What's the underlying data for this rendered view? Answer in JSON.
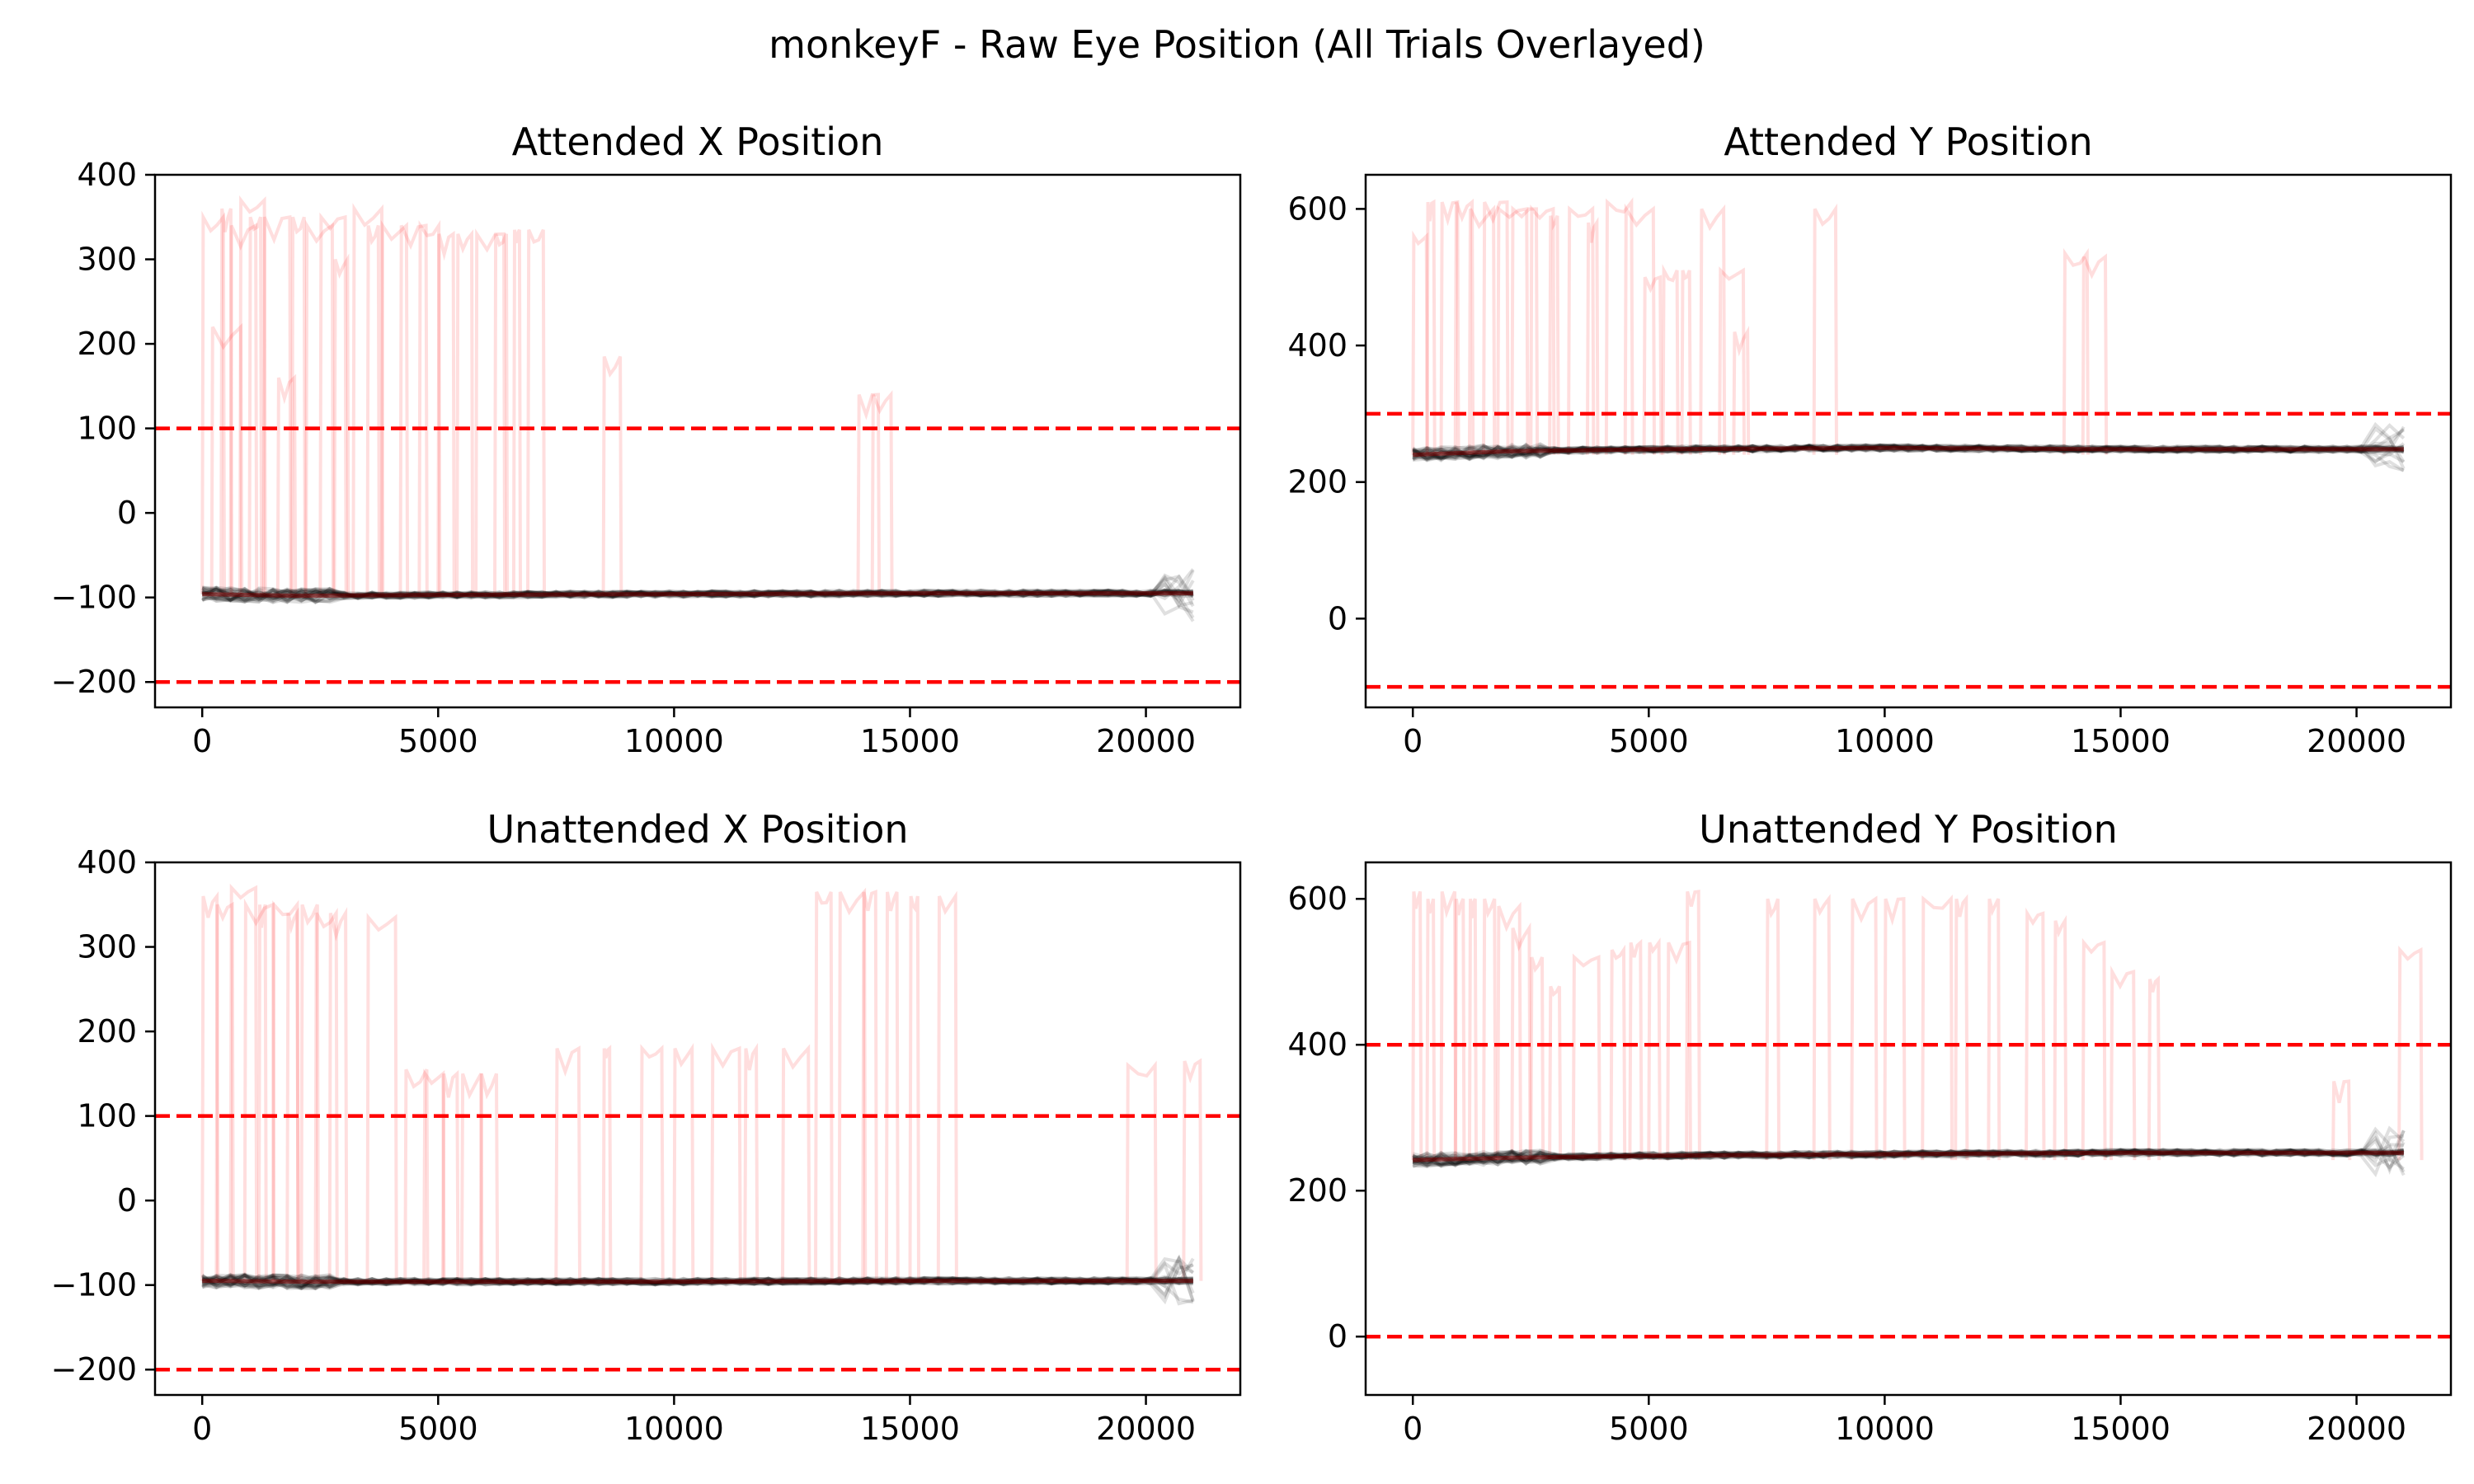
{
  "figure": {
    "suptitle": "monkeyF - Raw Eye Position (All Trials Overlayed)"
  },
  "colors": {
    "threshold": "#ff0000",
    "valid_trials": "#000000",
    "invalid_trials": "#ff0000",
    "axes": "#000000",
    "background": "#ffffff"
  },
  "chart_data": [
    {
      "type": "line",
      "title": "Attended X Position",
      "xlabel": "",
      "ylabel": "",
      "xlim": [
        -1000,
        22000
      ],
      "ylim": [
        -230,
        400
      ],
      "xticks": [
        0,
        5000,
        10000,
        15000,
        20000
      ],
      "xtick_labels": [
        "0",
        "5000",
        "10000",
        "15000",
        "20000"
      ],
      "yticks": [
        -200,
        -100,
        0,
        100,
        200,
        300,
        400
      ],
      "ytick_labels": [
        "−200",
        "−100",
        "0",
        "100",
        "200",
        "300",
        "400"
      ],
      "thresholds": [
        100,
        -200
      ],
      "grid": false,
      "valid_trace_approx": {
        "x": [
          0,
          2000,
          5000,
          10000,
          15000,
          20000,
          21000
        ],
        "y": [
          -96,
          -98,
          -97,
          -96,
          -95,
          -95,
          -95
        ]
      },
      "invalid_spike_x": [
        0,
        200,
        400,
        600,
        800,
        1000,
        1300,
        1600,
        1900,
        2200,
        2500,
        2800,
        3200,
        3500,
        3800,
        4200,
        4600,
        5000,
        5400,
        5800,
        6200,
        6600,
        6900,
        8500,
        13900,
        14200
      ],
      "invalid_spike_peak": [
        350,
        220,
        360,
        340,
        370,
        350,
        350,
        160,
        350,
        340,
        350,
        300,
        360,
        340,
        340,
        340,
        340,
        330,
        330,
        330,
        330,
        335,
        335,
        185,
        140,
        140
      ]
    },
    {
      "type": "line",
      "title": "Attended Y Position",
      "xlabel": "",
      "ylabel": "",
      "xlim": [
        -1000,
        22000
      ],
      "ylim": [
        -130,
        650
      ],
      "xticks": [
        0,
        5000,
        10000,
        15000,
        20000
      ],
      "xtick_labels": [
        "0",
        "5000",
        "10000",
        "15000",
        "20000"
      ],
      "yticks": [
        0,
        200,
        400,
        600
      ],
      "ytick_labels": [
        "0",
        "200",
        "400",
        "600"
      ],
      "thresholds": [
        300,
        -100
      ],
      "grid": false,
      "valid_trace_approx": {
        "x": [
          0,
          2000,
          5000,
          10000,
          15000,
          20000,
          21000
        ],
        "y": [
          240,
          245,
          248,
          250,
          248,
          248,
          248
        ]
      },
      "invalid_spike_x": [
        0,
        300,
        600,
        900,
        1200,
        1500,
        1800,
        2100,
        2500,
        2900,
        3300,
        3700,
        4100,
        4500,
        4900,
        5300,
        5700,
        6100,
        6500,
        6800,
        8500,
        13800,
        14200
      ],
      "invalid_spike_peak": [
        560,
        610,
        610,
        610,
        600,
        610,
        600,
        600,
        600,
        590,
        600,
        580,
        610,
        600,
        500,
        510,
        510,
        600,
        510,
        420,
        600,
        535,
        530
      ]
    },
    {
      "type": "line",
      "title": "Unattended X Position",
      "xlabel": "",
      "ylabel": "",
      "xlim": [
        -1000,
        22000
      ],
      "ylim": [
        -230,
        400
      ],
      "xticks": [
        0,
        5000,
        10000,
        15000,
        20000
      ],
      "xtick_labels": [
        "0",
        "5000",
        "10000",
        "15000",
        "20000"
      ],
      "yticks": [
        -200,
        -100,
        0,
        100,
        200,
        300,
        400
      ],
      "ytick_labels": [
        "−200",
        "−100",
        "0",
        "100",
        "200",
        "300",
        "400"
      ],
      "thresholds": [
        100,
        -200
      ],
      "grid": false,
      "valid_trace_approx": {
        "x": [
          0,
          2000,
          5000,
          10000,
          15000,
          20000,
          21000
        ],
        "y": [
          -95,
          -96,
          -96,
          -96,
          -95,
          -95,
          -95
        ]
      },
      "invalid_spike_x": [
        0,
        300,
        600,
        900,
        1200,
        1500,
        1800,
        2100,
        2400,
        2700,
        3500,
        4300,
        4700,
        5100,
        5500,
        5900,
        7500,
        8500,
        9300,
        10000,
        10800,
        11500,
        12300,
        13000,
        13500,
        14000,
        14500,
        15000,
        15600,
        19600,
        20800
      ],
      "invalid_spike_peak": [
        360,
        350,
        370,
        350,
        350,
        350,
        340,
        350,
        340,
        340,
        335,
        155,
        150,
        150,
        150,
        150,
        180,
        180,
        180,
        180,
        180,
        180,
        180,
        365,
        365,
        365,
        365,
        360,
        360,
        160,
        165
      ]
    },
    {
      "type": "line",
      "title": "Unattended Y Position",
      "xlabel": "",
      "ylabel": "",
      "xlim": [
        -1000,
        22000
      ],
      "ylim": [
        -80,
        650
      ],
      "xticks": [
        0,
        5000,
        10000,
        15000,
        20000
      ],
      "xtick_labels": [
        "0",
        "5000",
        "10000",
        "15000",
        "20000"
      ],
      "yticks": [
        0,
        200,
        400,
        600
      ],
      "ytick_labels": [
        "0",
        "200",
        "400",
        "600"
      ],
      "thresholds": [
        400,
        0
      ],
      "grid": false,
      "valid_trace_approx": {
        "x": [
          0,
          2000,
          5000,
          10000,
          15000,
          20000,
          21000
        ],
        "y": [
          242,
          245,
          248,
          250,
          252,
          252,
          252
        ]
      },
      "invalid_spike_x": [
        0,
        300,
        600,
        900,
        1200,
        1500,
        1800,
        2100,
        2500,
        2900,
        3400,
        4200,
        4600,
        5000,
        5400,
        5800,
        7500,
        8500,
        9300,
        10000,
        10800,
        11500,
        12200,
        13000,
        13600,
        14200,
        14800,
        15600,
        19500,
        20900
      ],
      "invalid_spike_peak": [
        610,
        600,
        610,
        600,
        600,
        600,
        590,
        560,
        520,
        480,
        520,
        530,
        540,
        540,
        540,
        610,
        600,
        600,
        600,
        600,
        600,
        600,
        600,
        580,
        570,
        540,
        500,
        490,
        350,
        530
      ]
    }
  ]
}
